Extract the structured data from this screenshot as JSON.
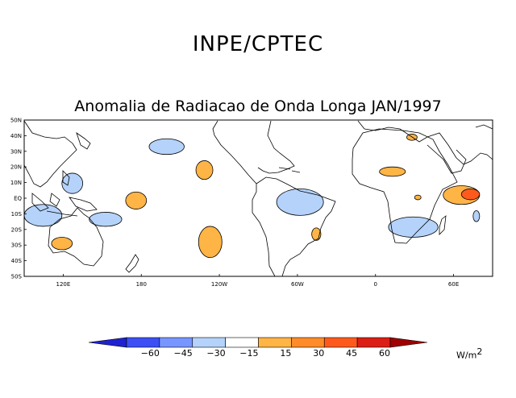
{
  "header": {
    "title": "INPE/CPTEC"
  },
  "map": {
    "title": "Anomalia de Radiacao de Onda Longa JAN/1997",
    "lat_labels": [
      "50N",
      "40N",
      "30N",
      "20N",
      "10N",
      "EQ",
      "10S",
      "20S",
      "30S",
      "40S",
      "50S"
    ],
    "lon_labels": [
      "120E",
      "180",
      "120W",
      "60W",
      "0",
      "60E"
    ],
    "lon_range": [
      90,
      450
    ],
    "lat_range": [
      -50,
      50
    ]
  },
  "colorbar": {
    "labels": [
      "−60",
      "−45",
      "−30",
      "−15",
      "15",
      "30",
      "45",
      "60"
    ],
    "colors": [
      "#1e22d2",
      "#3c50f5",
      "#7896ff",
      "#b4d2fa",
      "#ffffff",
      "#ffb446",
      "#ff8c28",
      "#ff5a1e",
      "#dc1e14",
      "#a00000"
    ],
    "units_text": "W/m",
    "units_exp": "2"
  },
  "anomalies": [
    {
      "name": "w-pacific-neg",
      "sign": "neg",
      "lon": [
        119,
        135
      ],
      "lat": [
        3,
        16
      ]
    },
    {
      "name": "n-pacific-neg",
      "sign": "neg",
      "lon": [
        186,
        213
      ],
      "lat": [
        28,
        38
      ]
    },
    {
      "name": "c-pacific-pos",
      "sign": "pos",
      "lon": [
        168,
        184
      ],
      "lat": [
        -7,
        4
      ]
    },
    {
      "name": "ne-pacific-pos",
      "sign": "pos",
      "lon": [
        222,
        235
      ],
      "lat": [
        12,
        24
      ]
    },
    {
      "name": "se-pacific-pos",
      "sign": "pos",
      "lon": [
        224,
        242
      ],
      "lat": [
        -38,
        -18
      ]
    },
    {
      "name": "s-pacific-neg",
      "sign": "neg",
      "lon": [
        140,
        165
      ],
      "lat": [
        -18,
        -9
      ]
    },
    {
      "name": "indonesia-neg",
      "sign": "neg",
      "lon": [
        90,
        119
      ],
      "lat": [
        -18,
        -4
      ]
    },
    {
      "name": "australia-pos",
      "sign": "pos",
      "lon": [
        111,
        127
      ],
      "lat": [
        -33,
        -25
      ]
    },
    {
      "name": "amazon-neg",
      "sign": "neg",
      "lon": [
        284,
        320
      ],
      "lat": [
        -11,
        6
      ]
    },
    {
      "name": "brazil-pos",
      "sign": "pos",
      "lon": [
        311,
        318
      ],
      "lat": [
        -27,
        -19
      ]
    },
    {
      "name": "sahel-pos",
      "sign": "pos",
      "lon": [
        3,
        23
      ],
      "lat": [
        14,
        20
      ]
    },
    {
      "name": "africa-pos",
      "sign": "pos",
      "lon": [
        30,
        35
      ],
      "lat": [
        -1,
        2
      ]
    },
    {
      "name": "s-africa-neg",
      "sign": "neg",
      "lon": [
        10,
        48
      ],
      "lat": [
        -25,
        -12
      ]
    },
    {
      "name": "indian-ocean-pos",
      "sign": "pos",
      "lon": [
        52,
        80
      ],
      "lat": [
        -4,
        8
      ]
    },
    {
      "name": "indian-ocean-core",
      "sign": "pos2",
      "lon": [
        66,
        80
      ],
      "lat": [
        -1,
        6
      ]
    },
    {
      "name": "middle-east-pos",
      "sign": "pos",
      "lon": [
        24,
        32
      ],
      "lat": [
        37,
        41
      ]
    },
    {
      "name": "india-neg",
      "sign": "neg",
      "lon": [
        75,
        80
      ],
      "lat": [
        -15,
        -8
      ]
    }
  ]
}
